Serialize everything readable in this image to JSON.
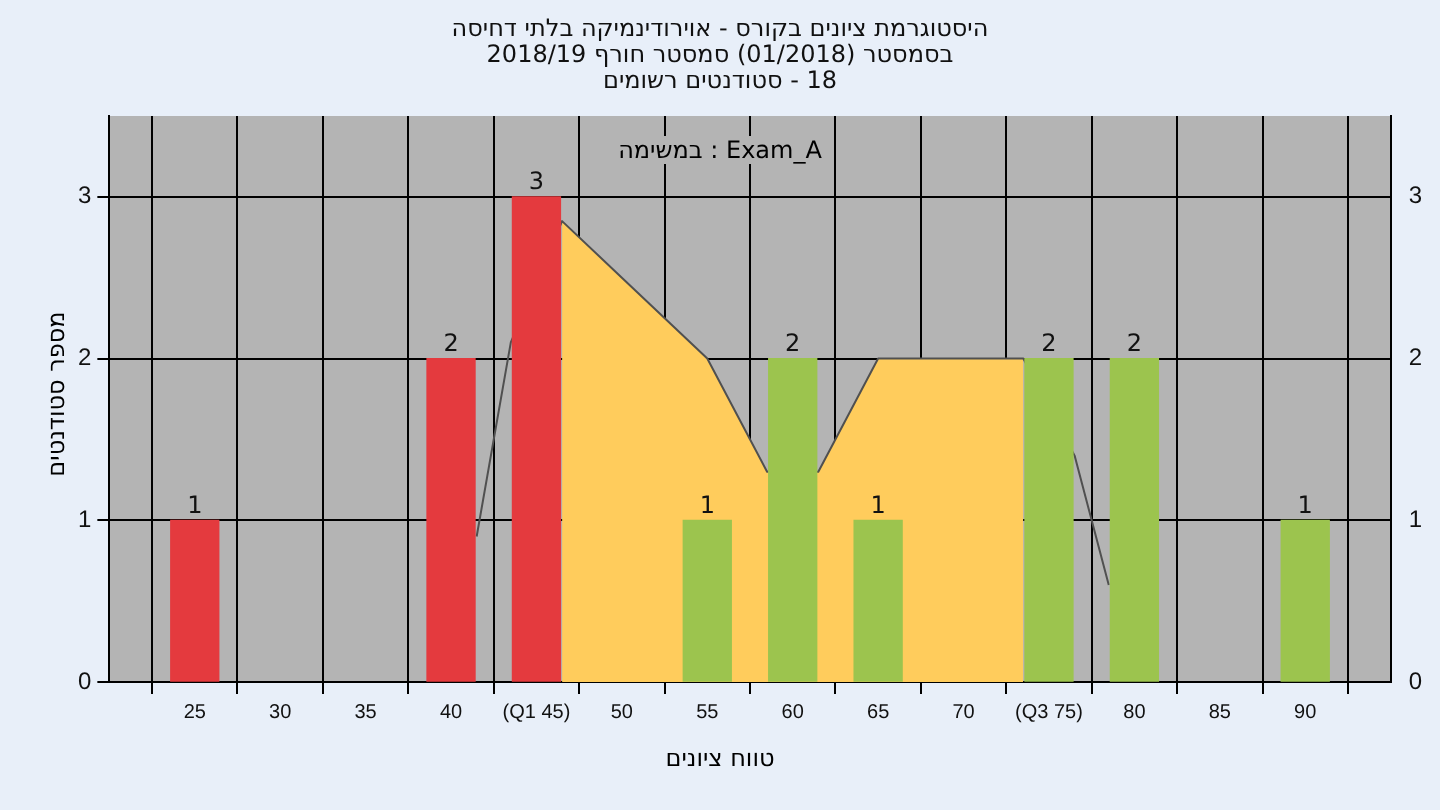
{
  "chart_data": {
    "type": "bar",
    "title": "היסטוגרמת ציונים בקורס - אוירודינמיקה בלתי דחיסה",
    "subtitle": "בסמסטר  (01/2018)  סמסטר חורף 2018/19\n18 - סטודנטים רשומים",
    "xlabel": "טווח ציונים",
    "ylabel": "מספר סטודנטים",
    "annotations": [
      "במשימה : Exam_A"
    ],
    "series": [
      {
        "x": [
          25,
          40,
          45,
          55,
          60,
          65,
          75,
          80,
          90
        ],
        "values": [
          1,
          2,
          3,
          1,
          2,
          1,
          2,
          2,
          1
        ],
        "value_labels": [
          "1",
          "2",
          "3",
          "1",
          "2",
          "1",
          "2",
          "2",
          "1"
        ],
        "colors": [
          "#e43a3e",
          "#e43a3e",
          "#e43a3e",
          "#9cc44e",
          "#9cc44e",
          "#9cc44e",
          "#9cc44e",
          "#9cc44e",
          "#9cc44e"
        ]
      },
      {
        "type": "area",
        "x": [
          46.5,
          50,
          55,
          58.5,
          61.5,
          65,
          70,
          73.5
        ],
        "values": [
          2.85,
          2.5,
          2,
          1.3,
          1.3,
          2,
          2,
          2
        ],
        "color": "#ffcc5c"
      },
      {
        "type": "line",
        "x": [
          41.5,
          43.5,
          46.5,
          50,
          55,
          58.5,
          61.5,
          65,
          70,
          73.5,
          76.5,
          78.5
        ],
        "values": [
          0.9,
          2.1,
          2.85,
          2.5,
          2,
          1.3,
          1.3,
          2,
          2,
          2,
          1.4,
          0.6
        ],
        "color": "#505050"
      }
    ],
    "xlim": [
      20,
      95
    ],
    "xticks": [
      25,
      30,
      35,
      40,
      {
        "value": 45,
        "label": "(Q1 45)"
      },
      50,
      55,
      60,
      65,
      70,
      {
        "value": 75,
        "label": "(Q3 75)"
      },
      80,
      85,
      90
    ],
    "ylim": [
      0,
      3.5
    ],
    "yticks": [
      0,
      1,
      2,
      3
    ],
    "y2lim": [
      0,
      3.5
    ],
    "y2ticks": [
      0,
      1,
      2,
      3
    ],
    "grid": true
  }
}
